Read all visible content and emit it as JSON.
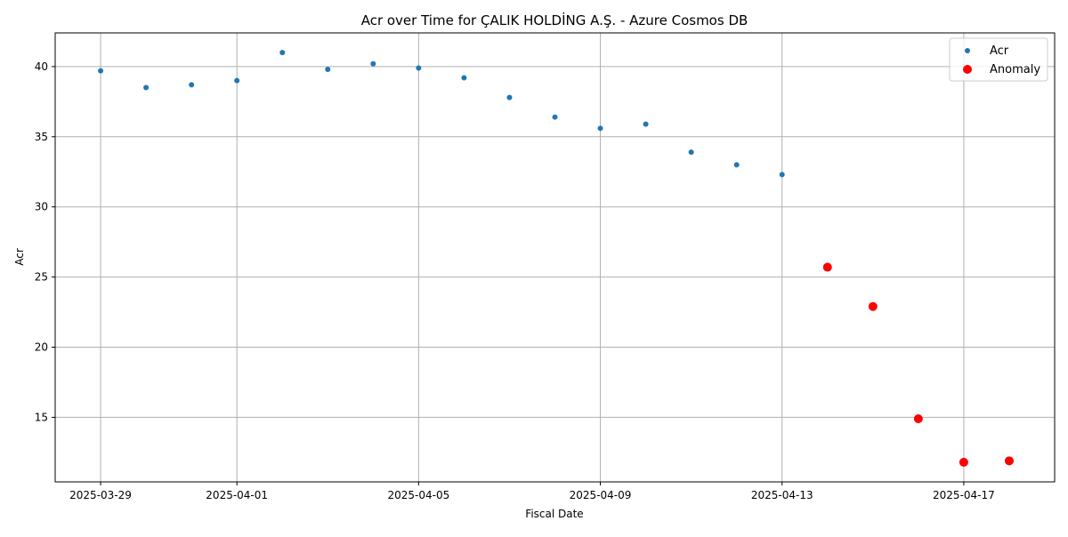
{
  "chart_data": {
    "type": "scatter",
    "title": "Acr over Time for ÇALIK HOLDİNG A.Ş. - Azure Cosmos DB",
    "xlabel": "Fiscal Date",
    "ylabel": "Acr",
    "x_type": "date",
    "xlim": [
      "2025-03-28",
      "2025-04-19"
    ],
    "ylim": [
      10.4,
      42.4
    ],
    "x_ticks": [
      "2025-03-29",
      "2025-04-01",
      "2025-04-05",
      "2025-04-09",
      "2025-04-13",
      "2025-04-17"
    ],
    "y_ticks": [
      15,
      20,
      25,
      30,
      35,
      40
    ],
    "grid": true,
    "legend_position": "top-right",
    "series": [
      {
        "name": "Acr",
        "color": "#1f77b4",
        "marker": "small-circle",
        "points": [
          {
            "x": "2025-03-29",
            "y": 39.7
          },
          {
            "x": "2025-03-30",
            "y": 38.5
          },
          {
            "x": "2025-03-31",
            "y": 38.7
          },
          {
            "x": "2025-04-01",
            "y": 39.0
          },
          {
            "x": "2025-04-02",
            "y": 41.0
          },
          {
            "x": "2025-04-03",
            "y": 39.8
          },
          {
            "x": "2025-04-04",
            "y": 40.2
          },
          {
            "x": "2025-04-05",
            "y": 39.9
          },
          {
            "x": "2025-04-06",
            "y": 39.2
          },
          {
            "x": "2025-04-07",
            "y": 37.8
          },
          {
            "x": "2025-04-08",
            "y": 36.4
          },
          {
            "x": "2025-04-09",
            "y": 35.6
          },
          {
            "x": "2025-04-10",
            "y": 35.9
          },
          {
            "x": "2025-04-11",
            "y": 33.9
          },
          {
            "x": "2025-04-12",
            "y": 33.0
          },
          {
            "x": "2025-04-13",
            "y": 32.3
          }
        ]
      },
      {
        "name": "Anomaly",
        "color": "#ff0000",
        "marker": "large-circle",
        "points": [
          {
            "x": "2025-04-14",
            "y": 25.7
          },
          {
            "x": "2025-04-15",
            "y": 22.9
          },
          {
            "x": "2025-04-16",
            "y": 14.9
          },
          {
            "x": "2025-04-17",
            "y": 11.8
          },
          {
            "x": "2025-04-18",
            "y": 11.9
          }
        ]
      }
    ]
  }
}
